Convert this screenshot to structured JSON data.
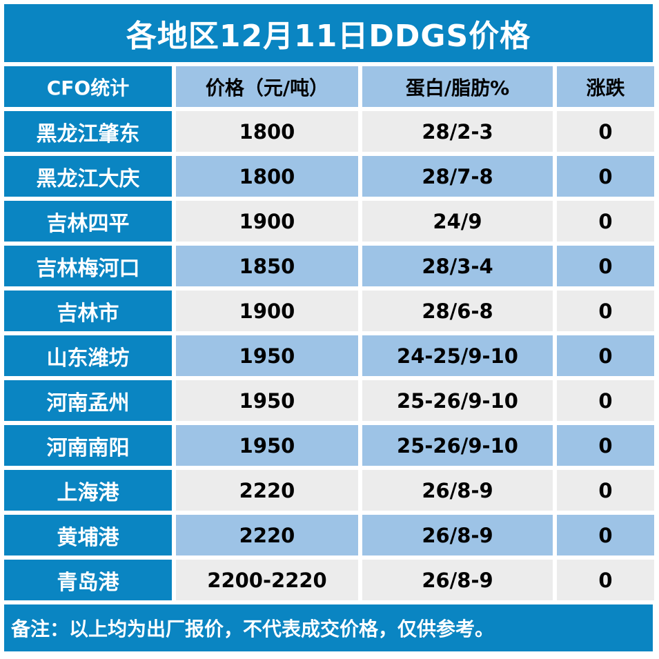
{
  "title": "各地区12月11日DDGS价格",
  "header": {
    "col1": "CFO统计",
    "col2": "价格（元/吨）",
    "col3": "蛋白/脂肪%",
    "col4": "涨跌"
  },
  "rows": [
    {
      "region": "黑龙江肇东",
      "price": "1800",
      "spec": "28/2-3",
      "change": "0"
    },
    {
      "region": "黑龙江大庆",
      "price": "1800",
      "spec": "28/7-8",
      "change": "0"
    },
    {
      "region": "吉林四平",
      "price": "1900",
      "spec": "24/9",
      "change": "0"
    },
    {
      "region": "吉林梅河口",
      "price": "1850",
      "spec": "28/3-4",
      "change": "0"
    },
    {
      "region": "吉林市",
      "price": "1900",
      "spec": "28/6-8",
      "change": "0"
    },
    {
      "region": "山东潍坊",
      "price": "1950",
      "spec": "24-25/9-10",
      "change": "0"
    },
    {
      "region": "河南孟州",
      "price": "1950",
      "spec": "25-26/9-10",
      "change": "0"
    },
    {
      "region": "河南南阳",
      "price": "1950",
      "spec": "25-26/9-10",
      "change": "0"
    },
    {
      "region": "上海港",
      "price": "2220",
      "spec": "26/8-9",
      "change": "0"
    },
    {
      "region": "黄埔港",
      "price": "2220",
      "spec": "26/8-9",
      "change": "0"
    },
    {
      "region": "青岛港",
      "price": "2200-2220",
      "spec": "26/8-9",
      "change": "0"
    }
  ],
  "footer": "备注：以上均为出厂报价，不代表成交价格，仅供参考。",
  "colors": {
    "primary_blue": "#0a85c2",
    "light_blue": "#9dc3e6",
    "light_gray": "#ececec"
  }
}
